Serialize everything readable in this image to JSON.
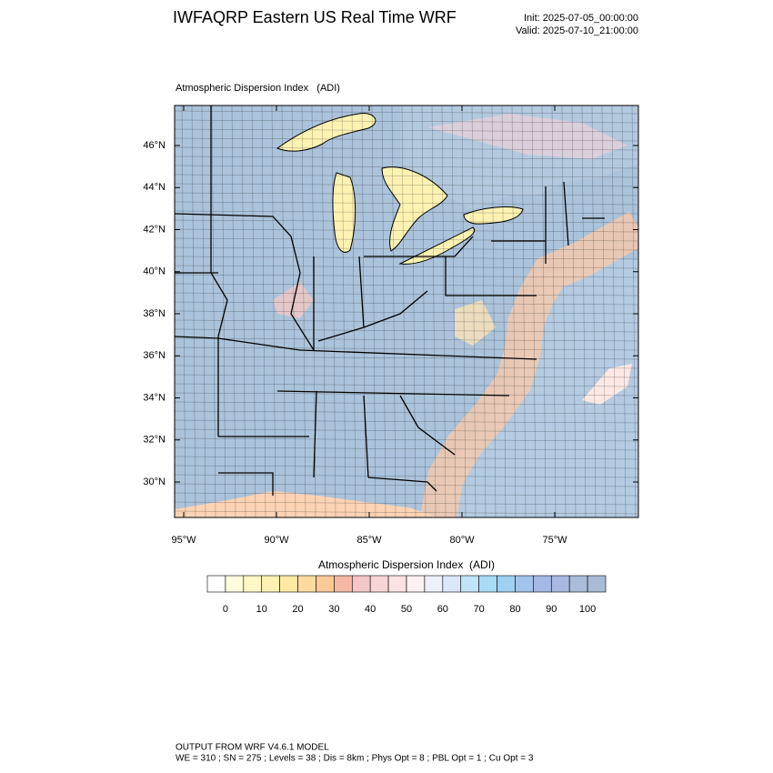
{
  "header": {
    "title": "IWFAQRP Eastern US Real Time WRF",
    "init": "Init: 2025-07-05_00:00:00",
    "valid": "Valid: 2025-07-10_21:00:00"
  },
  "map": {
    "title": "Atmospheric Dispersion Index   (ADI)",
    "lat_labels": [
      "46°N",
      "44°N",
      "42°N",
      "40°N",
      "38°N",
      "36°N",
      "34°N",
      "32°N",
      "30°N"
    ],
    "lon_labels": [
      "95°W",
      "90°W",
      "85°W",
      "80°W",
      "75°W"
    ]
  },
  "colorbar": {
    "title": "Atmospheric Dispersion Index  (ADI)",
    "ticks": [
      0,
      10,
      20,
      30,
      40,
      50,
      60,
      70,
      80,
      90,
      100
    ],
    "colors": [
      "#ffffff",
      "#fffcdc",
      "#fff7c6",
      "#fff1b4",
      "#ffe9a4",
      "#fddba0",
      "#f9c996",
      "#f6b8a4",
      "#f5c6c6",
      "#f8d5d5",
      "#fbe3e3",
      "#fdf1f1",
      "#eef1fb",
      "#d9e8fa",
      "#c0e3f8",
      "#a9dbf5",
      "#9fd0f2",
      "#a2c4ec",
      "#a6b9e6",
      "#a8b8e0",
      "#a9bcd8",
      "#a9bcd6"
    ]
  },
  "footer": [
    "OUTPUT FROM WRF V4.6.1 MODEL",
    "WE = 310 ; SN = 275 ; Levels = 38 ; Dis = 8km ; Phys Opt = 8 ; PBL Opt = 1 ; Cu Opt = 3"
  ]
}
